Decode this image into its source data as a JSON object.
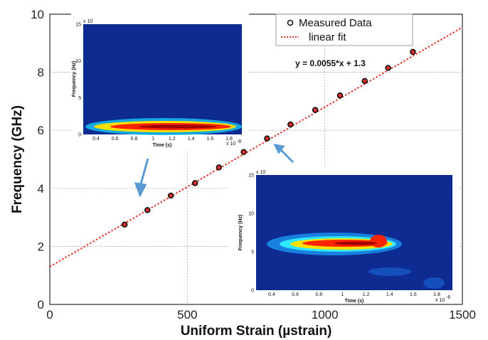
{
  "chart_data": {
    "type": "scatter",
    "xlabel": "Uniform Strain (µstrain)",
    "ylabel": "Frequency (GHz)",
    "xlim": [
      0,
      1500
    ],
    "ylim": [
      0,
      10
    ],
    "xticks": [
      0,
      500,
      1000,
      1500
    ],
    "yticks": [
      0,
      2,
      4,
      6,
      8,
      10
    ],
    "grid": true,
    "legend_position": "top-right",
    "series": [
      {
        "name": "Measured Data",
        "style": "circle-markers",
        "color": "#111111",
        "x": [
          272,
          355,
          440,
          528,
          615,
          705,
          790,
          875,
          965,
          1055,
          1145,
          1230,
          1320
        ],
        "y": [
          2.75,
          3.25,
          3.75,
          4.18,
          4.72,
          5.25,
          5.72,
          6.2,
          6.7,
          7.2,
          7.7,
          8.15,
          8.7
        ]
      },
      {
        "name": "linear fit",
        "style": "dotted-line",
        "color": "#e8302a",
        "slope": 0.0055,
        "intercept": 1.3
      }
    ],
    "annotation": "y = 0.0055*x + 1.3",
    "insets": [
      {
        "xlabel": "Time (s)",
        "ylabel": "Frequency (Hz)",
        "yticks": [
          "0",
          "5",
          "10",
          "15"
        ],
        "xticks": [
          "0.4",
          "0.6",
          "0.8",
          "1",
          "1.2",
          "1.4",
          "1.6",
          "1.8"
        ],
        "y_exponent": "x 10",
        "x_exponent": "x 10",
        "x_exponent_power": "-6"
      },
      {
        "xlabel": "Time (s)",
        "ylabel": "Frequency (Hz)",
        "yticks": [
          "0",
          "5",
          "10",
          "15"
        ],
        "xticks": [
          "0.4",
          "0.6",
          "0.8",
          "1",
          "1.2",
          "1.4",
          "1.6",
          "1.8"
        ],
        "y_exponent": "x 10",
        "x_exponent": "x 10",
        "x_exponent_power": "-6"
      }
    ]
  }
}
